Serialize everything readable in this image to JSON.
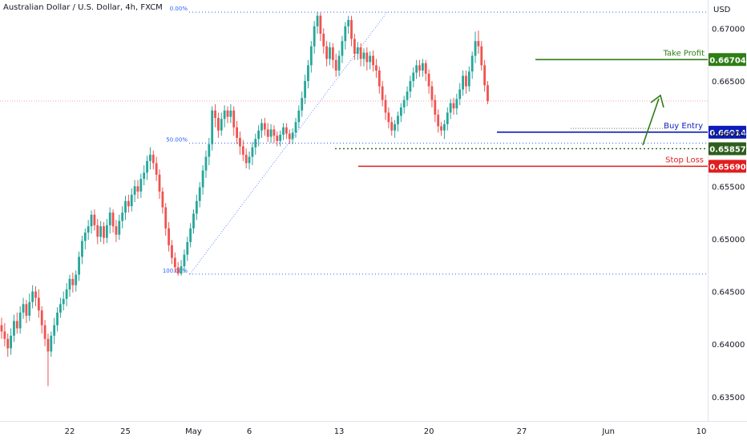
{
  "header": {
    "title": "Australian Dollar / U.S. Dollar, 4h, FXCM",
    "currency": "USD"
  },
  "colors": {
    "up": "#26a69a",
    "down": "#ef5350",
    "fib": "#2962ff",
    "take_profit": "#2e7d16",
    "buy_entry": "#0d1dbd",
    "stop_loss": "#e01e1e",
    "dark_green": "#2e5e1e"
  },
  "chart_data": {
    "type": "candlestick",
    "title": "Australian Dollar / U.S. Dollar, 4h, FXCM",
    "ylabel": "USD",
    "ylim": [
      0.6327,
      0.6727
    ],
    "y_ticks": [
      "0.67000",
      "0.66500",
      "0.66000",
      "0.65500",
      "0.65000",
      "0.64500",
      "0.64000",
      "0.63500"
    ],
    "y_tick_values": [
      0.67,
      0.665,
      0.66,
      0.655,
      0.65,
      0.645,
      0.64,
      0.635
    ],
    "x_ticks": [
      {
        "label": "22",
        "bar": 22
      },
      {
        "label": "25",
        "bar": 40
      },
      {
        "label": "May",
        "bar": 62
      },
      {
        "label": "6",
        "bar": 80
      },
      {
        "label": "13",
        "bar": 109
      },
      {
        "label": "20",
        "bar": 138
      },
      {
        "label": "27",
        "bar": 168
      },
      {
        "label": "Jun",
        "bar": 196
      },
      {
        "label": "10",
        "bar": 226
      }
    ],
    "fibonacci": [
      {
        "label": "0.00%",
        "value": 0.67155
      },
      {
        "label": "50.00%",
        "value": 0.6591
      },
      {
        "label": "100.00%",
        "value": 0.64665
      }
    ],
    "levels": [
      {
        "name": "Take Profit",
        "price": "0.66704",
        "value": 0.66704
      },
      {
        "name": "Buy Entry",
        "price": "0.66014",
        "value": 0.66014
      },
      {
        "name": "",
        "price": "0.65857",
        "value": 0.65857
      },
      {
        "name": "Stop Loss",
        "price": "0.65690",
        "value": 0.6569
      }
    ],
    "current_price": 0.6631,
    "candles": [
      [
        0.6418,
        0.6412,
        0.6425,
        0.6405
      ],
      [
        0.6412,
        0.6405,
        0.642,
        0.6398
      ],
      [
        0.6405,
        0.6396,
        0.641,
        0.6388
      ],
      [
        0.6396,
        0.6408,
        0.6415,
        0.639
      ],
      [
        0.6408,
        0.6422,
        0.6428,
        0.6402
      ],
      [
        0.6422,
        0.6415,
        0.643,
        0.641
      ],
      [
        0.6415,
        0.643,
        0.6436,
        0.641
      ],
      [
        0.643,
        0.6438,
        0.6444,
        0.6424
      ],
      [
        0.6438,
        0.6427,
        0.6442,
        0.642
      ],
      [
        0.6427,
        0.644,
        0.6448,
        0.6422
      ],
      [
        0.644,
        0.645,
        0.6456,
        0.6434
      ],
      [
        0.645,
        0.6444,
        0.6455,
        0.6436
      ],
      [
        0.6444,
        0.6432,
        0.6452,
        0.6425
      ],
      [
        0.6432,
        0.6418,
        0.6436,
        0.641
      ],
      [
        0.6418,
        0.6405,
        0.6423,
        0.6398
      ],
      [
        0.6405,
        0.6393,
        0.641,
        0.636
      ],
      [
        0.6393,
        0.6408,
        0.6412,
        0.6388
      ],
      [
        0.6408,
        0.6418,
        0.6425,
        0.64
      ],
      [
        0.6418,
        0.643,
        0.6435,
        0.6412
      ],
      [
        0.643,
        0.6438,
        0.6444,
        0.6425
      ],
      [
        0.6438,
        0.6443,
        0.645,
        0.6432
      ],
      [
        0.6443,
        0.6452,
        0.6458,
        0.6436
      ],
      [
        0.6452,
        0.6462,
        0.6466,
        0.6445
      ],
      [
        0.6462,
        0.6456,
        0.6468,
        0.6449
      ],
      [
        0.6456,
        0.6466,
        0.647,
        0.645
      ],
      [
        0.6466,
        0.6483,
        0.6488,
        0.646
      ],
      [
        0.6483,
        0.6498,
        0.6503,
        0.6476
      ],
      [
        0.6498,
        0.6506,
        0.651,
        0.649
      ],
      [
        0.6506,
        0.6512,
        0.6518,
        0.6499
      ],
      [
        0.6512,
        0.6523,
        0.6527,
        0.6505
      ],
      [
        0.6523,
        0.6513,
        0.6528,
        0.6508
      ],
      [
        0.6513,
        0.6502,
        0.6519,
        0.6495
      ],
      [
        0.6502,
        0.6512,
        0.6517,
        0.6497
      ],
      [
        0.6512,
        0.6501,
        0.6516,
        0.6495
      ],
      [
        0.6501,
        0.6513,
        0.6519,
        0.6496
      ],
      [
        0.6513,
        0.6525,
        0.653,
        0.6505
      ],
      [
        0.6525,
        0.6512,
        0.6528,
        0.6506
      ],
      [
        0.6512,
        0.6504,
        0.6518,
        0.6497
      ],
      [
        0.6504,
        0.6517,
        0.6523,
        0.6499
      ],
      [
        0.6517,
        0.6525,
        0.6531,
        0.651
      ],
      [
        0.6525,
        0.6536,
        0.6541,
        0.6518
      ],
      [
        0.6536,
        0.6531,
        0.6542,
        0.6525
      ],
      [
        0.6531,
        0.6542,
        0.6548,
        0.6526
      ],
      [
        0.6542,
        0.655,
        0.6556,
        0.6535
      ],
      [
        0.655,
        0.6545,
        0.6556,
        0.6538
      ],
      [
        0.6545,
        0.6557,
        0.6562,
        0.6539
      ],
      [
        0.6557,
        0.6563,
        0.657,
        0.6551
      ],
      [
        0.6563,
        0.6574,
        0.6579,
        0.6556
      ],
      [
        0.6574,
        0.658,
        0.6587,
        0.6566
      ],
      [
        0.658,
        0.6572,
        0.6584,
        0.6566
      ],
      [
        0.6572,
        0.6561,
        0.6578,
        0.6555
      ],
      [
        0.6561,
        0.6545,
        0.6566,
        0.6538
      ],
      [
        0.6545,
        0.653,
        0.6549,
        0.6524
      ],
      [
        0.653,
        0.651,
        0.6534,
        0.6503
      ],
      [
        0.651,
        0.6494,
        0.6516,
        0.6488
      ],
      [
        0.6494,
        0.6482,
        0.6499,
        0.6476
      ],
      [
        0.6482,
        0.6473,
        0.6487,
        0.6468
      ],
      [
        0.6473,
        0.6467,
        0.6478,
        0.6465
      ],
      [
        0.6467,
        0.6474,
        0.648,
        0.6465
      ],
      [
        0.6474,
        0.6485,
        0.649,
        0.6468
      ],
      [
        0.6485,
        0.6497,
        0.6502,
        0.6479
      ],
      [
        0.6497,
        0.651,
        0.6515,
        0.6492
      ],
      [
        0.651,
        0.6524,
        0.6528,
        0.6505
      ],
      [
        0.6524,
        0.6536,
        0.6542,
        0.6518
      ],
      [
        0.6536,
        0.6549,
        0.6554,
        0.653
      ],
      [
        0.6549,
        0.6565,
        0.657,
        0.6542
      ],
      [
        0.6565,
        0.6578,
        0.6584,
        0.6558
      ],
      [
        0.6578,
        0.659,
        0.6596,
        0.657
      ],
      [
        0.659,
        0.6622,
        0.6626,
        0.6584
      ],
      [
        0.6622,
        0.6615,
        0.6628,
        0.6606
      ],
      [
        0.6615,
        0.6603,
        0.662,
        0.6596
      ],
      [
        0.6603,
        0.6614,
        0.662,
        0.6598
      ],
      [
        0.6614,
        0.6622,
        0.6627,
        0.6606
      ],
      [
        0.6622,
        0.6616,
        0.6626,
        0.661
      ],
      [
        0.6616,
        0.6622,
        0.6628,
        0.661
      ],
      [
        0.6622,
        0.6606,
        0.6626,
        0.6598
      ],
      [
        0.6606,
        0.6596,
        0.6612,
        0.659
      ],
      [
        0.6596,
        0.6588,
        0.6602,
        0.658
      ],
      [
        0.6588,
        0.658,
        0.6594,
        0.6574
      ],
      [
        0.658,
        0.6572,
        0.6586,
        0.6567
      ],
      [
        0.6572,
        0.6578,
        0.6583,
        0.6566
      ],
      [
        0.6578,
        0.6587,
        0.6592,
        0.657
      ],
      [
        0.6587,
        0.6595,
        0.66,
        0.658
      ],
      [
        0.6595,
        0.6603,
        0.6608,
        0.6588
      ],
      [
        0.6603,
        0.661,
        0.6614,
        0.6596
      ],
      [
        0.661,
        0.6604,
        0.6615,
        0.6598
      ],
      [
        0.6604,
        0.6597,
        0.661,
        0.6592
      ],
      [
        0.6597,
        0.6604,
        0.6609,
        0.6591
      ],
      [
        0.6604,
        0.6598,
        0.6608,
        0.6591
      ],
      [
        0.6598,
        0.6593,
        0.6602,
        0.6588
      ],
      [
        0.6593,
        0.6599,
        0.6603,
        0.6588
      ],
      [
        0.6599,
        0.6606,
        0.661,
        0.6594
      ],
      [
        0.6606,
        0.66,
        0.661,
        0.6595
      ],
      [
        0.66,
        0.6595,
        0.6604,
        0.659
      ],
      [
        0.6595,
        0.6601,
        0.6605,
        0.659
      ],
      [
        0.6601,
        0.6611,
        0.6615,
        0.6596
      ],
      [
        0.6611,
        0.6622,
        0.6627,
        0.6605
      ],
      [
        0.6622,
        0.6634,
        0.664,
        0.6616
      ],
      [
        0.6634,
        0.665,
        0.6656,
        0.6628
      ],
      [
        0.665,
        0.6665,
        0.667,
        0.6643
      ],
      [
        0.6665,
        0.6683,
        0.6688,
        0.6658
      ],
      [
        0.6683,
        0.6702,
        0.6707,
        0.6676
      ],
      [
        0.6702,
        0.6712,
        0.6716,
        0.6695
      ],
      [
        0.6712,
        0.6695,
        0.6715,
        0.6688
      ],
      [
        0.6695,
        0.6683,
        0.67,
        0.6676
      ],
      [
        0.6683,
        0.6671,
        0.6688,
        0.6664
      ],
      [
        0.6671,
        0.6682,
        0.6687,
        0.6665
      ],
      [
        0.6682,
        0.667,
        0.6686,
        0.6662
      ],
      [
        0.667,
        0.666,
        0.6676,
        0.6654
      ],
      [
        0.666,
        0.6674,
        0.6679,
        0.6655
      ],
      [
        0.6674,
        0.6688,
        0.6693,
        0.6667
      ],
      [
        0.6688,
        0.6702,
        0.6706,
        0.668
      ],
      [
        0.6702,
        0.6708,
        0.6712,
        0.6695
      ],
      [
        0.6708,
        0.669,
        0.6712,
        0.6683
      ],
      [
        0.669,
        0.6676,
        0.6695,
        0.667
      ],
      [
        0.6676,
        0.6682,
        0.6687,
        0.667
      ],
      [
        0.6682,
        0.6671,
        0.6686,
        0.6664
      ],
      [
        0.6671,
        0.6677,
        0.6681,
        0.6664
      ],
      [
        0.6677,
        0.6668,
        0.6682,
        0.666
      ],
      [
        0.6668,
        0.6674,
        0.6678,
        0.6661
      ],
      [
        0.6674,
        0.6665,
        0.6679,
        0.6659
      ],
      [
        0.6665,
        0.666,
        0.6671,
        0.6653
      ],
      [
        0.666,
        0.6645,
        0.6664,
        0.6638
      ],
      [
        0.6645,
        0.6632,
        0.665,
        0.6626
      ],
      [
        0.6632,
        0.662,
        0.6637,
        0.6613
      ],
      [
        0.662,
        0.6611,
        0.6625,
        0.6605
      ],
      [
        0.6611,
        0.6603,
        0.6616,
        0.6598
      ],
      [
        0.6603,
        0.6609,
        0.6613,
        0.6596
      ],
      [
        0.6609,
        0.6617,
        0.6621,
        0.6602
      ],
      [
        0.6617,
        0.6625,
        0.6629,
        0.6611
      ],
      [
        0.6625,
        0.6632,
        0.6636,
        0.6619
      ],
      [
        0.6632,
        0.664,
        0.6645,
        0.6626
      ],
      [
        0.664,
        0.665,
        0.6655,
        0.6634
      ],
      [
        0.665,
        0.6658,
        0.6663,
        0.6644
      ],
      [
        0.6658,
        0.6665,
        0.667,
        0.6652
      ],
      [
        0.6665,
        0.666,
        0.667,
        0.6654
      ],
      [
        0.666,
        0.6667,
        0.6671,
        0.6654
      ],
      [
        0.6667,
        0.6657,
        0.667,
        0.665
      ],
      [
        0.6657,
        0.6645,
        0.6661,
        0.6638
      ],
      [
        0.6645,
        0.6632,
        0.665,
        0.6625
      ],
      [
        0.6632,
        0.6618,
        0.6637,
        0.6611
      ],
      [
        0.6618,
        0.6607,
        0.6623,
        0.6601
      ],
      [
        0.6607,
        0.6603,
        0.6611,
        0.6598
      ],
      [
        0.6603,
        0.6609,
        0.6613,
        0.6595
      ],
      [
        0.6609,
        0.662,
        0.6625,
        0.6603
      ],
      [
        0.662,
        0.6629,
        0.6633,
        0.6614
      ],
      [
        0.6629,
        0.6624,
        0.6634,
        0.6618
      ],
      [
        0.6624,
        0.6633,
        0.6638,
        0.6618
      ],
      [
        0.6633,
        0.6642,
        0.6648,
        0.6627
      ],
      [
        0.6642,
        0.6655,
        0.666,
        0.6636
      ],
      [
        0.6655,
        0.6645,
        0.666,
        0.6638
      ],
      [
        0.6645,
        0.6659,
        0.6664,
        0.664
      ],
      [
        0.6659,
        0.6674,
        0.6678,
        0.6652
      ],
      [
        0.6674,
        0.6688,
        0.6697,
        0.6667
      ],
      [
        0.6688,
        0.6683,
        0.6698,
        0.6676
      ],
      [
        0.6683,
        0.6665,
        0.6688,
        0.666
      ],
      [
        0.6665,
        0.6646,
        0.667,
        0.664
      ],
      [
        0.6646,
        0.6631,
        0.665,
        0.6628
      ]
    ]
  }
}
